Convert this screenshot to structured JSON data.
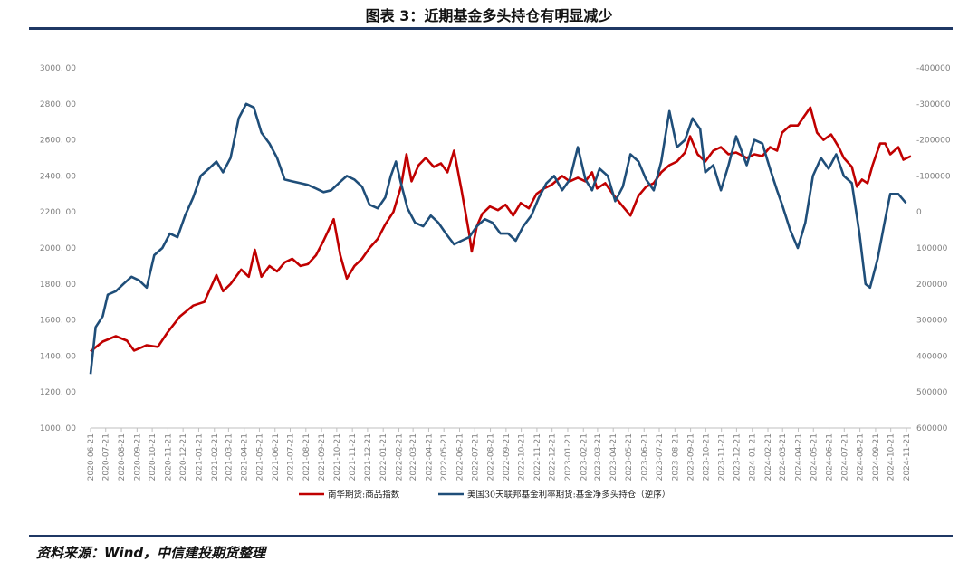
{
  "title": "图表 3：近期基金多头持仓有明显减少",
  "source": "资料来源：Wind，中信建投期货整理",
  "chart_data": {
    "type": "line",
    "title": "图表 3：近期基金多头持仓有明显减少",
    "y_left": {
      "ticks": [
        "1000. 00",
        "1200. 00",
        "1400. 00",
        "1600. 00",
        "1800. 00",
        "2000. 00",
        "2200. 00",
        "2400. 00",
        "2600. 00",
        "2800. 00",
        "3000. 00"
      ],
      "lim": [
        1000,
        3000
      ]
    },
    "y_right": {
      "ticks": [
        "600000",
        "500000",
        "400000",
        "300000",
        "200000",
        "100000",
        "0",
        "-100000",
        "-200000",
        "-300000",
        "-400000"
      ],
      "lim": [
        600000,
        -400000
      ],
      "reversed": true
    },
    "x_ticks": [
      "2020-06-21",
      "2020-07-21",
      "2020-08-21",
      "2020-09-21",
      "2020-10-21",
      "2020-11-21",
      "2020-12-21",
      "2021-01-21",
      "2021-02-21",
      "2021-03-21",
      "2021-04-21",
      "2021-05-21",
      "2021-06-21",
      "2021-07-21",
      "2021-08-21",
      "2021-09-21",
      "2021-10-21",
      "2021-11-21",
      "2021-12-21",
      "2022-01-21",
      "2022-02-21",
      "2022-03-21",
      "2022-04-21",
      "2022-05-21",
      "2022-06-21",
      "2022-07-21",
      "2022-08-21",
      "2022-09-21",
      "2022-10-21",
      "2022-11-21",
      "2022-12-21",
      "2023-01-21",
      "2023-02-21",
      "2023-03-21",
      "2023-04-21",
      "2023-05-21",
      "2023-06-21",
      "2023-07-21",
      "2023-08-21",
      "2023-09-21",
      "2023-10-21",
      "2023-11-21",
      "2023-12-21",
      "2024-01-21",
      "2024-02-21",
      "2024-03-21",
      "2024-04-21",
      "2024-05-21",
      "2024-06-21",
      "2024-07-21",
      "2024-08-21",
      "2024-09-21",
      "2024-10-21",
      "2024-11-21"
    ],
    "x_start": "2020-06-21",
    "x_end": "2024-11-30",
    "series": [
      {
        "name": "南华期货:商品指数",
        "color": "#c00000",
        "axis": "left",
        "points": [
          [
            "2020-06-21",
            1425
          ],
          [
            "2020-07-15",
            1480
          ],
          [
            "2020-08-10",
            1510
          ],
          [
            "2020-09-01",
            1485
          ],
          [
            "2020-09-15",
            1430
          ],
          [
            "2020-10-10",
            1460
          ],
          [
            "2020-11-01",
            1450
          ],
          [
            "2020-11-20",
            1530
          ],
          [
            "2020-12-15",
            1620
          ],
          [
            "2021-01-10",
            1680
          ],
          [
            "2021-02-01",
            1700
          ],
          [
            "2021-02-25",
            1850
          ],
          [
            "2021-03-10",
            1760
          ],
          [
            "2021-03-25",
            1800
          ],
          [
            "2021-04-15",
            1880
          ],
          [
            "2021-04-30",
            1840
          ],
          [
            "2021-05-12",
            1990
          ],
          [
            "2021-05-25",
            1840
          ],
          [
            "2021-06-10",
            1900
          ],
          [
            "2021-06-25",
            1870
          ],
          [
            "2021-07-10",
            1920
          ],
          [
            "2021-07-25",
            1940
          ],
          [
            "2021-08-10",
            1900
          ],
          [
            "2021-08-25",
            1910
          ],
          [
            "2021-09-10",
            1960
          ],
          [
            "2021-09-25",
            2040
          ],
          [
            "2021-10-15",
            2160
          ],
          [
            "2021-10-28",
            1960
          ],
          [
            "2021-11-10",
            1830
          ],
          [
            "2021-11-25",
            1900
          ],
          [
            "2021-12-10",
            1940
          ],
          [
            "2021-12-25",
            2000
          ],
          [
            "2022-01-10",
            2050
          ],
          [
            "2022-01-25",
            2130
          ],
          [
            "2022-02-10",
            2200
          ],
          [
            "2022-02-25",
            2340
          ],
          [
            "2022-03-08",
            2520
          ],
          [
            "2022-03-18",
            2370
          ],
          [
            "2022-04-01",
            2460
          ],
          [
            "2022-04-15",
            2500
          ],
          [
            "2022-05-01",
            2450
          ],
          [
            "2022-05-15",
            2470
          ],
          [
            "2022-05-28",
            2420
          ],
          [
            "2022-06-10",
            2540
          ],
          [
            "2022-06-25",
            2320
          ],
          [
            "2022-07-10",
            2080
          ],
          [
            "2022-07-15",
            1980
          ],
          [
            "2022-07-25",
            2120
          ],
          [
            "2022-08-05",
            2190
          ],
          [
            "2022-08-20",
            2230
          ],
          [
            "2022-09-05",
            2210
          ],
          [
            "2022-09-20",
            2240
          ],
          [
            "2022-10-05",
            2180
          ],
          [
            "2022-10-20",
            2250
          ],
          [
            "2022-11-05",
            2220
          ],
          [
            "2022-11-20",
            2300
          ],
          [
            "2022-12-05",
            2330
          ],
          [
            "2022-12-20",
            2350
          ],
          [
            "2023-01-10",
            2400
          ],
          [
            "2023-01-25",
            2370
          ],
          [
            "2023-02-10",
            2390
          ],
          [
            "2023-02-25",
            2370
          ],
          [
            "2023-03-10",
            2420
          ],
          [
            "2023-03-20",
            2330
          ],
          [
            "2023-04-05",
            2360
          ],
          [
            "2023-04-20",
            2300
          ],
          [
            "2023-05-10",
            2230
          ],
          [
            "2023-05-25",
            2180
          ],
          [
            "2023-06-10",
            2290
          ],
          [
            "2023-06-25",
            2340
          ],
          [
            "2023-07-10",
            2360
          ],
          [
            "2023-07-25",
            2420
          ],
          [
            "2023-08-10",
            2460
          ],
          [
            "2023-08-25",
            2480
          ],
          [
            "2023-09-10",
            2530
          ],
          [
            "2023-09-20",
            2620
          ],
          [
            "2023-10-05",
            2520
          ],
          [
            "2023-10-20",
            2480
          ],
          [
            "2023-11-05",
            2540
          ],
          [
            "2023-11-20",
            2560
          ],
          [
            "2023-12-05",
            2520
          ],
          [
            "2023-12-20",
            2530
          ],
          [
            "2024-01-10",
            2500
          ],
          [
            "2024-01-25",
            2520
          ],
          [
            "2024-02-10",
            2510
          ],
          [
            "2024-02-25",
            2560
          ],
          [
            "2024-03-10",
            2540
          ],
          [
            "2024-03-20",
            2640
          ],
          [
            "2024-04-05",
            2680
          ],
          [
            "2024-04-20",
            2680
          ],
          [
            "2024-05-05",
            2740
          ],
          [
            "2024-05-15",
            2780
          ],
          [
            "2024-05-28",
            2640
          ],
          [
            "2024-06-10",
            2600
          ],
          [
            "2024-06-25",
            2630
          ],
          [
            "2024-07-10",
            2560
          ],
          [
            "2024-07-20",
            2500
          ],
          [
            "2024-08-05",
            2450
          ],
          [
            "2024-08-15",
            2340
          ],
          [
            "2024-08-25",
            2380
          ],
          [
            "2024-09-05",
            2360
          ],
          [
            "2024-09-15",
            2460
          ],
          [
            "2024-09-30",
            2580
          ],
          [
            "2024-10-10",
            2580
          ],
          [
            "2024-10-20",
            2520
          ],
          [
            "2024-11-05",
            2560
          ],
          [
            "2024-11-15",
            2490
          ],
          [
            "2024-11-30",
            2510
          ]
        ]
      },
      {
        "name": "美国30天联邦基金利率期货:基金净多头持仓（逆序）",
        "color": "#1f4e79",
        "axis": "right",
        "points": [
          [
            "2020-06-21",
            450000
          ],
          [
            "2020-07-01",
            320000
          ],
          [
            "2020-07-15",
            290000
          ],
          [
            "2020-07-25",
            230000
          ],
          [
            "2020-08-10",
            220000
          ],
          [
            "2020-08-25",
            200000
          ],
          [
            "2020-09-10",
            180000
          ],
          [
            "2020-09-25",
            190000
          ],
          [
            "2020-10-10",
            210000
          ],
          [
            "2020-10-25",
            120000
          ],
          [
            "2020-11-10",
            100000
          ],
          [
            "2020-11-25",
            60000
          ],
          [
            "2020-12-10",
            70000
          ],
          [
            "2020-12-25",
            10000
          ],
          [
            "2021-01-10",
            -40000
          ],
          [
            "2021-01-25",
            -100000
          ],
          [
            "2021-02-10",
            -120000
          ],
          [
            "2021-02-25",
            -140000
          ],
          [
            "2021-03-10",
            -110000
          ],
          [
            "2021-03-25",
            -150000
          ],
          [
            "2021-04-10",
            -260000
          ],
          [
            "2021-04-25",
            -300000
          ],
          [
            "2021-05-10",
            -290000
          ],
          [
            "2021-05-25",
            -220000
          ],
          [
            "2021-06-10",
            -190000
          ],
          [
            "2021-06-25",
            -150000
          ],
          [
            "2021-07-10",
            -90000
          ],
          [
            "2021-07-25",
            -85000
          ],
          [
            "2021-08-10",
            -80000
          ],
          [
            "2021-08-25",
            -75000
          ],
          [
            "2021-09-10",
            -65000
          ],
          [
            "2021-09-25",
            -55000
          ],
          [
            "2021-10-10",
            -60000
          ],
          [
            "2021-10-25",
            -80000
          ],
          [
            "2021-11-10",
            -100000
          ],
          [
            "2021-11-25",
            -90000
          ],
          [
            "2021-12-10",
            -70000
          ],
          [
            "2021-12-25",
            -20000
          ],
          [
            "2022-01-10",
            -10000
          ],
          [
            "2022-01-25",
            -40000
          ],
          [
            "2022-02-05",
            -100000
          ],
          [
            "2022-02-15",
            -140000
          ],
          [
            "2022-02-25",
            -80000
          ],
          [
            "2022-03-10",
            -10000
          ],
          [
            "2022-03-25",
            30000
          ],
          [
            "2022-04-10",
            40000
          ],
          [
            "2022-04-25",
            10000
          ],
          [
            "2022-05-10",
            30000
          ],
          [
            "2022-05-25",
            60000
          ],
          [
            "2022-06-10",
            90000
          ],
          [
            "2022-06-25",
            80000
          ],
          [
            "2022-07-10",
            70000
          ],
          [
            "2022-07-25",
            40000
          ],
          [
            "2022-08-10",
            20000
          ],
          [
            "2022-08-25",
            30000
          ],
          [
            "2022-09-10",
            60000
          ],
          [
            "2022-09-25",
            60000
          ],
          [
            "2022-10-10",
            80000
          ],
          [
            "2022-10-25",
            40000
          ],
          [
            "2022-11-10",
            10000
          ],
          [
            "2022-11-25",
            -40000
          ],
          [
            "2022-12-10",
            -80000
          ],
          [
            "2022-12-25",
            -100000
          ],
          [
            "2023-01-10",
            -60000
          ],
          [
            "2023-01-25",
            -90000
          ],
          [
            "2023-02-10",
            -180000
          ],
          [
            "2023-02-25",
            -90000
          ],
          [
            "2023-03-10",
            -60000
          ],
          [
            "2023-03-25",
            -120000
          ],
          [
            "2023-04-10",
            -100000
          ],
          [
            "2023-04-25",
            -30000
          ],
          [
            "2023-05-10",
            -70000
          ],
          [
            "2023-05-25",
            -160000
          ],
          [
            "2023-06-10",
            -140000
          ],
          [
            "2023-06-25",
            -90000
          ],
          [
            "2023-07-10",
            -60000
          ],
          [
            "2023-07-25",
            -140000
          ],
          [
            "2023-08-10",
            -280000
          ],
          [
            "2023-08-25",
            -180000
          ],
          [
            "2023-09-10",
            -200000
          ],
          [
            "2023-09-25",
            -260000
          ],
          [
            "2023-10-10",
            -230000
          ],
          [
            "2023-10-20",
            -110000
          ],
          [
            "2023-11-05",
            -130000
          ],
          [
            "2023-11-20",
            -60000
          ],
          [
            "2023-12-05",
            -130000
          ],
          [
            "2023-12-20",
            -210000
          ],
          [
            "2024-01-10",
            -130000
          ],
          [
            "2024-01-25",
            -200000
          ],
          [
            "2024-02-10",
            -190000
          ],
          [
            "2024-02-25",
            -120000
          ],
          [
            "2024-03-10",
            -60000
          ],
          [
            "2024-03-20",
            -20000
          ],
          [
            "2024-04-05",
            50000
          ],
          [
            "2024-04-20",
            100000
          ],
          [
            "2024-05-05",
            30000
          ],
          [
            "2024-05-20",
            -100000
          ],
          [
            "2024-06-05",
            -150000
          ],
          [
            "2024-06-20",
            -120000
          ],
          [
            "2024-07-05",
            -160000
          ],
          [
            "2024-07-20",
            -100000
          ],
          [
            "2024-08-05",
            -80000
          ],
          [
            "2024-08-20",
            60000
          ],
          [
            "2024-09-01",
            200000
          ],
          [
            "2024-09-10",
            210000
          ],
          [
            "2024-09-25",
            130000
          ],
          [
            "2024-10-10",
            20000
          ],
          [
            "2024-10-20",
            -50000
          ],
          [
            "2024-11-05",
            -50000
          ],
          [
            "2024-11-20",
            -25000
          ]
        ]
      }
    ],
    "grid": false,
    "legend_position": "bottom"
  }
}
